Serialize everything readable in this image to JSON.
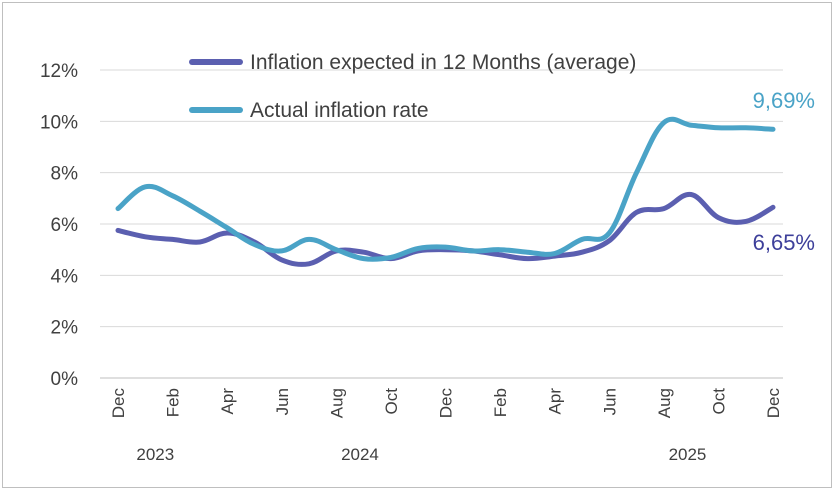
{
  "chart_data": {
    "type": "line",
    "title": "",
    "xlabel": "",
    "ylabel": "",
    "ylim": [
      0,
      12
    ],
    "yticks": [
      "0%",
      "2%",
      "4%",
      "6%",
      "8%",
      "10%",
      "12%"
    ],
    "ytick_values": [
      0,
      2,
      4,
      6,
      8,
      10,
      12
    ],
    "x": [
      "Dec 2023",
      "Jan 2024",
      "Feb 2024",
      "Mar 2024",
      "Apr 2024",
      "May 2024",
      "Jun 2024",
      "Jul 2024",
      "Aug 2024",
      "Sep 2024",
      "Oct 2024",
      "Nov 2024",
      "Dec 2024",
      "Jan 2025",
      "Feb 2025",
      "Mar 2025",
      "Apr 2025",
      "May 2025",
      "Jun 2025",
      "Jul 2025",
      "Aug 2025",
      "Sep 2025",
      "Oct 2025",
      "Nov 2025",
      "Dec 2025"
    ],
    "x_tick_labels": [
      {
        "index": 0,
        "label": "Dec"
      },
      {
        "index": 2,
        "label": "Feb"
      },
      {
        "index": 4,
        "label": "Apr"
      },
      {
        "index": 6,
        "label": "Jun"
      },
      {
        "index": 8,
        "label": "Aug"
      },
      {
        "index": 10,
        "label": "Oct"
      },
      {
        "index": 12,
        "label": "Dec"
      },
      {
        "index": 14,
        "label": "Feb"
      },
      {
        "index": 16,
        "label": "Apr"
      },
      {
        "index": 18,
        "label": "Jun"
      },
      {
        "index": 20,
        "label": "Aug"
      },
      {
        "index": 22,
        "label": "Oct"
      },
      {
        "index": 24,
        "label": "Dec"
      }
    ],
    "year_labels": [
      {
        "label": "2023",
        "center_index": 1
      },
      {
        "label": "2024",
        "center_index": 8.5
      },
      {
        "label": "2025",
        "center_index": 20.5
      }
    ],
    "series": [
      {
        "name": "Inflation expected in 12 Months (average)",
        "color": "#5b5fb0",
        "values": [
          5.75,
          5.5,
          5.4,
          5.3,
          5.65,
          5.3,
          4.6,
          4.45,
          4.95,
          4.9,
          4.65,
          4.95,
          5.0,
          4.95,
          4.8,
          4.65,
          4.75,
          4.9,
          5.35,
          6.45,
          6.6,
          7.15,
          6.25,
          6.1,
          6.65
        ],
        "end_label": "6,65%"
      },
      {
        "name": "Actual inflation rate",
        "color": "#4aa3c7",
        "values": [
          6.6,
          7.45,
          7.1,
          6.5,
          5.85,
          5.2,
          4.95,
          5.4,
          5.0,
          4.65,
          4.7,
          5.05,
          5.1,
          4.95,
          5.0,
          4.9,
          4.85,
          5.4,
          5.65,
          8.0,
          9.95,
          9.85,
          9.75,
          9.75,
          9.69
        ],
        "end_label": "9,69%"
      }
    ],
    "legend_position": "top-center",
    "grid": true
  }
}
